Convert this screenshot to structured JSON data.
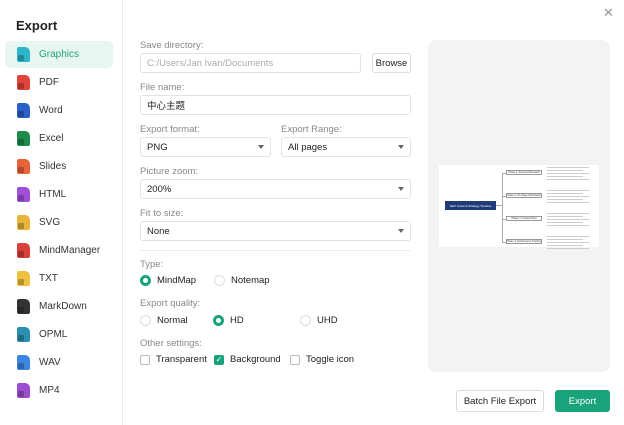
{
  "title": "Export",
  "accent": "#1aa37a",
  "sidebar": {
    "items": [
      {
        "label": "Graphics",
        "icon": "image-file-icon",
        "color": "#2fb5c9",
        "active": true
      },
      {
        "label": "PDF",
        "icon": "pdf-file-icon",
        "color": "#e0443a"
      },
      {
        "label": "Word",
        "icon": "word-file-icon",
        "color": "#2b5fc9"
      },
      {
        "label": "Excel",
        "icon": "excel-file-icon",
        "color": "#1e8a4c"
      },
      {
        "label": "Slides",
        "icon": "slides-file-icon",
        "color": "#e8623a"
      },
      {
        "label": "HTML",
        "icon": "html-file-icon",
        "color": "#a04fd8"
      },
      {
        "label": "SVG",
        "icon": "svg-file-icon",
        "color": "#e8b53a"
      },
      {
        "label": "MindManager",
        "icon": "mindmanager-file-icon",
        "color": "#d9403a"
      },
      {
        "label": "TXT",
        "icon": "txt-file-icon",
        "color": "#f0c040"
      },
      {
        "label": "MarkDown",
        "icon": "markdown-file-icon",
        "color": "#333333"
      },
      {
        "label": "OPML",
        "icon": "opml-file-icon",
        "color": "#2a8fb0"
      },
      {
        "label": "WAV",
        "icon": "wav-file-icon",
        "color": "#3a86e0"
      },
      {
        "label": "MP4",
        "icon": "mp4-file-icon",
        "color": "#9b4fd0"
      }
    ]
  },
  "form": {
    "save_dir_label": "Save directory:",
    "save_dir_placeholder": "C:/Users/Jan Ivan/Documents",
    "browse": "Browse",
    "file_name_label": "File name:",
    "file_name": "中心主题",
    "format_label": "Export format:",
    "format": "PNG",
    "range_label": "Export Range:",
    "range": "All pages",
    "zoom_label": "Picture zoom:",
    "zoom": "200%",
    "fit_label": "Fit to size:",
    "fit": "None",
    "type_label": "Type:",
    "type_options": [
      "MindMap",
      "Notemap"
    ],
    "type_selected": "MindMap",
    "quality_label": "Export quality:",
    "quality_options": [
      "Normal",
      "HD",
      "UHD"
    ],
    "quality_selected": "HD",
    "other_label": "Other settings:",
    "other": [
      {
        "label": "Transparent",
        "checked": false
      },
      {
        "label": "Background",
        "checked": true
      },
      {
        "label": "Toggle icon",
        "checked": false
      }
    ]
  },
  "preview": {
    "root": "SEO Content Strategy Timeline",
    "phases": [
      "Phase 1: Keyword Research",
      "Phase 2: On-Page Optimization",
      "Phase 3: Content Plan",
      "Phase 4: Performance Tracking"
    ]
  },
  "buttons": {
    "batch": "Batch File Export",
    "export": "Export"
  }
}
